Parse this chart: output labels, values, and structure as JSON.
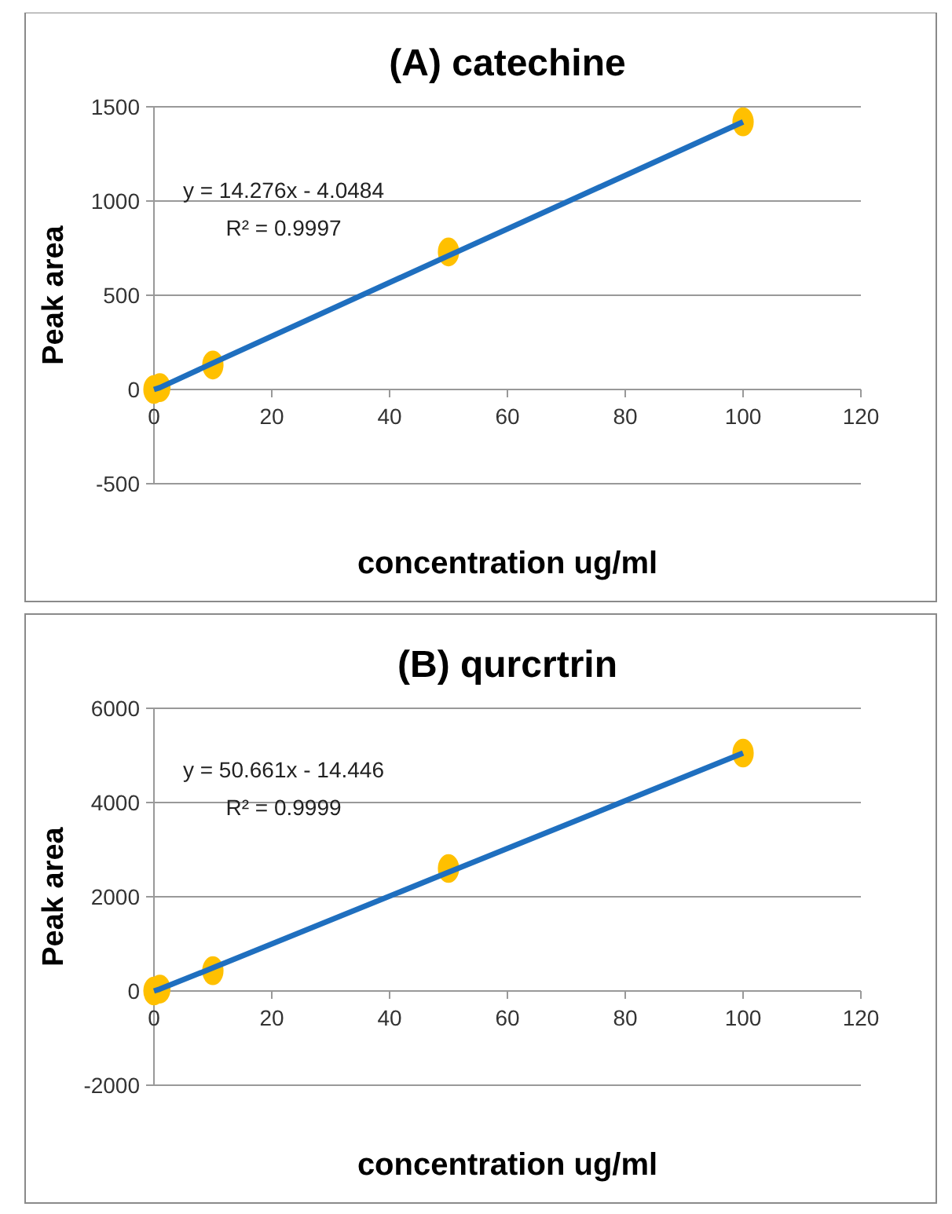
{
  "chart_data": [
    {
      "type": "scatter",
      "title": "(A) catechine",
      "xlabel": "concentration ug/ml",
      "ylabel": "Peak area",
      "xlim": [
        0,
        120
      ],
      "xticks": [
        0,
        20,
        40,
        60,
        80,
        100,
        120
      ],
      "ylim": [
        -500,
        1500
      ],
      "yticks": [
        -500,
        0,
        500,
        1000,
        1500
      ],
      "grid": "y",
      "x": [
        0,
        1,
        10,
        50,
        100
      ],
      "series": [
        {
          "color": "#ffc000",
          "marker": "circle",
          "values": [
            0,
            10,
            130,
            730,
            1420
          ]
        },
        {
          "type": "line",
          "marker": "none",
          "color": "#1f6fbf",
          "values": [
            0,
            10,
            140,
            710,
            1420
          ]
        }
      ],
      "annotations": [
        "y = 14.276x - 4.0484",
        "R² = 0.9997"
      ]
    },
    {
      "type": "scatter",
      "title": "(B) qurcrtrin",
      "xlabel": "concentration ug/ml",
      "ylabel": "Peak area",
      "xlim": [
        0,
        120
      ],
      "xticks": [
        0,
        20,
        40,
        60,
        80,
        100,
        120
      ],
      "ylim": [
        -2000,
        6000
      ],
      "yticks": [
        -2000,
        0,
        2000,
        4000,
        6000
      ],
      "grid": "y",
      "x": [
        0,
        1,
        10,
        50,
        100
      ],
      "series": [
        {
          "color": "#ffc000",
          "marker": "circle",
          "values": [
            0,
            40,
            430,
            2600,
            5050
          ]
        },
        {
          "type": "line",
          "marker": "none",
          "color": "#1f6fbf",
          "values": [
            0,
            40,
            490,
            2520,
            5050
          ]
        }
      ],
      "annotations": [
        "y = 50.661x - 14.446",
        "R² = 0.9999"
      ]
    }
  ]
}
